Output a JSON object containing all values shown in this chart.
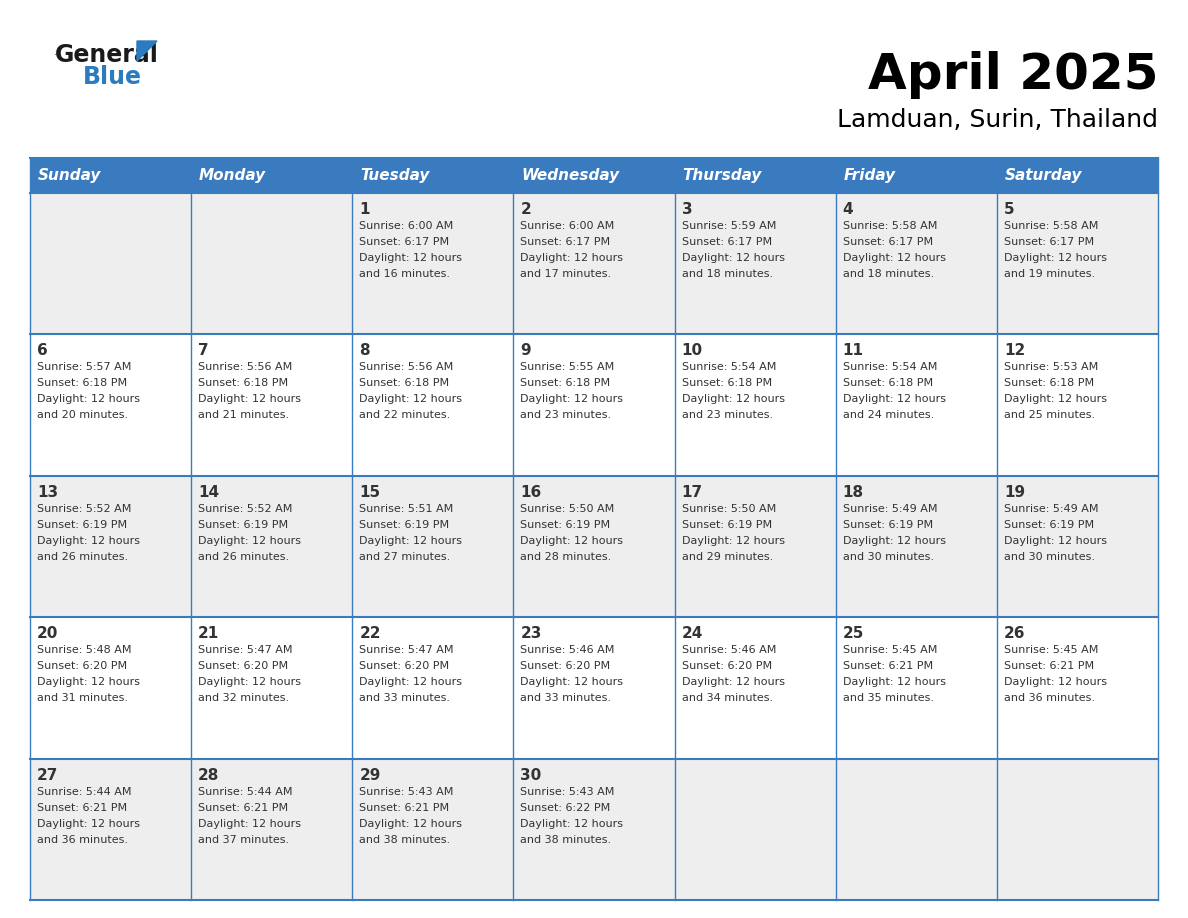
{
  "title": "April 2025",
  "subtitle": "Lamduan, Surin, Thailand",
  "days_of_week": [
    "Sunday",
    "Monday",
    "Tuesday",
    "Wednesday",
    "Thursday",
    "Friday",
    "Saturday"
  ],
  "header_bg_color": "#3a7bbf",
  "header_text_color": "#ffffff",
  "cell_bg_color_odd": "#eeeeee",
  "cell_bg_color_even": "#ffffff",
  "row_divider_color": "#3a7bbf",
  "text_color": "#333333",
  "logo_color_general": "#1a1a1a",
  "logo_color_blue": "#2a7bbf",
  "logo_triangle_color": "#2a7bbf",
  "calendar_data": [
    {
      "day": 1,
      "col": 2,
      "row": 0,
      "sunrise": "6:00 AM",
      "sunset": "6:17 PM",
      "daylight_hours": 12,
      "daylight_minutes": 16
    },
    {
      "day": 2,
      "col": 3,
      "row": 0,
      "sunrise": "6:00 AM",
      "sunset": "6:17 PM",
      "daylight_hours": 12,
      "daylight_minutes": 17
    },
    {
      "day": 3,
      "col": 4,
      "row": 0,
      "sunrise": "5:59 AM",
      "sunset": "6:17 PM",
      "daylight_hours": 12,
      "daylight_minutes": 18
    },
    {
      "day": 4,
      "col": 5,
      "row": 0,
      "sunrise": "5:58 AM",
      "sunset": "6:17 PM",
      "daylight_hours": 12,
      "daylight_minutes": 18
    },
    {
      "day": 5,
      "col": 6,
      "row": 0,
      "sunrise": "5:58 AM",
      "sunset": "6:17 PM",
      "daylight_hours": 12,
      "daylight_minutes": 19
    },
    {
      "day": 6,
      "col": 0,
      "row": 1,
      "sunrise": "5:57 AM",
      "sunset": "6:18 PM",
      "daylight_hours": 12,
      "daylight_minutes": 20
    },
    {
      "day": 7,
      "col": 1,
      "row": 1,
      "sunrise": "5:56 AM",
      "sunset": "6:18 PM",
      "daylight_hours": 12,
      "daylight_minutes": 21
    },
    {
      "day": 8,
      "col": 2,
      "row": 1,
      "sunrise": "5:56 AM",
      "sunset": "6:18 PM",
      "daylight_hours": 12,
      "daylight_minutes": 22
    },
    {
      "day": 9,
      "col": 3,
      "row": 1,
      "sunrise": "5:55 AM",
      "sunset": "6:18 PM",
      "daylight_hours": 12,
      "daylight_minutes": 23
    },
    {
      "day": 10,
      "col": 4,
      "row": 1,
      "sunrise": "5:54 AM",
      "sunset": "6:18 PM",
      "daylight_hours": 12,
      "daylight_minutes": 23
    },
    {
      "day": 11,
      "col": 5,
      "row": 1,
      "sunrise": "5:54 AM",
      "sunset": "6:18 PM",
      "daylight_hours": 12,
      "daylight_minutes": 24
    },
    {
      "day": 12,
      "col": 6,
      "row": 1,
      "sunrise": "5:53 AM",
      "sunset": "6:18 PM",
      "daylight_hours": 12,
      "daylight_minutes": 25
    },
    {
      "day": 13,
      "col": 0,
      "row": 2,
      "sunrise": "5:52 AM",
      "sunset": "6:19 PM",
      "daylight_hours": 12,
      "daylight_minutes": 26
    },
    {
      "day": 14,
      "col": 1,
      "row": 2,
      "sunrise": "5:52 AM",
      "sunset": "6:19 PM",
      "daylight_hours": 12,
      "daylight_minutes": 26
    },
    {
      "day": 15,
      "col": 2,
      "row": 2,
      "sunrise": "5:51 AM",
      "sunset": "6:19 PM",
      "daylight_hours": 12,
      "daylight_minutes": 27
    },
    {
      "day": 16,
      "col": 3,
      "row": 2,
      "sunrise": "5:50 AM",
      "sunset": "6:19 PM",
      "daylight_hours": 12,
      "daylight_minutes": 28
    },
    {
      "day": 17,
      "col": 4,
      "row": 2,
      "sunrise": "5:50 AM",
      "sunset": "6:19 PM",
      "daylight_hours": 12,
      "daylight_minutes": 29
    },
    {
      "day": 18,
      "col": 5,
      "row": 2,
      "sunrise": "5:49 AM",
      "sunset": "6:19 PM",
      "daylight_hours": 12,
      "daylight_minutes": 30
    },
    {
      "day": 19,
      "col": 6,
      "row": 2,
      "sunrise": "5:49 AM",
      "sunset": "6:19 PM",
      "daylight_hours": 12,
      "daylight_minutes": 30
    },
    {
      "day": 20,
      "col": 0,
      "row": 3,
      "sunrise": "5:48 AM",
      "sunset": "6:20 PM",
      "daylight_hours": 12,
      "daylight_minutes": 31
    },
    {
      "day": 21,
      "col": 1,
      "row": 3,
      "sunrise": "5:47 AM",
      "sunset": "6:20 PM",
      "daylight_hours": 12,
      "daylight_minutes": 32
    },
    {
      "day": 22,
      "col": 2,
      "row": 3,
      "sunrise": "5:47 AM",
      "sunset": "6:20 PM",
      "daylight_hours": 12,
      "daylight_minutes": 33
    },
    {
      "day": 23,
      "col": 3,
      "row": 3,
      "sunrise": "5:46 AM",
      "sunset": "6:20 PM",
      "daylight_hours": 12,
      "daylight_minutes": 33
    },
    {
      "day": 24,
      "col": 4,
      "row": 3,
      "sunrise": "5:46 AM",
      "sunset": "6:20 PM",
      "daylight_hours": 12,
      "daylight_minutes": 34
    },
    {
      "day": 25,
      "col": 5,
      "row": 3,
      "sunrise": "5:45 AM",
      "sunset": "6:21 PM",
      "daylight_hours": 12,
      "daylight_minutes": 35
    },
    {
      "day": 26,
      "col": 6,
      "row": 3,
      "sunrise": "5:45 AM",
      "sunset": "6:21 PM",
      "daylight_hours": 12,
      "daylight_minutes": 36
    },
    {
      "day": 27,
      "col": 0,
      "row": 4,
      "sunrise": "5:44 AM",
      "sunset": "6:21 PM",
      "daylight_hours": 12,
      "daylight_minutes": 36
    },
    {
      "day": 28,
      "col": 1,
      "row": 4,
      "sunrise": "5:44 AM",
      "sunset": "6:21 PM",
      "daylight_hours": 12,
      "daylight_minutes": 37
    },
    {
      "day": 29,
      "col": 2,
      "row": 4,
      "sunrise": "5:43 AM",
      "sunset": "6:21 PM",
      "daylight_hours": 12,
      "daylight_minutes": 38
    },
    {
      "day": 30,
      "col": 3,
      "row": 4,
      "sunrise": "5:43 AM",
      "sunset": "6:22 PM",
      "daylight_hours": 12,
      "daylight_minutes": 38
    }
  ]
}
